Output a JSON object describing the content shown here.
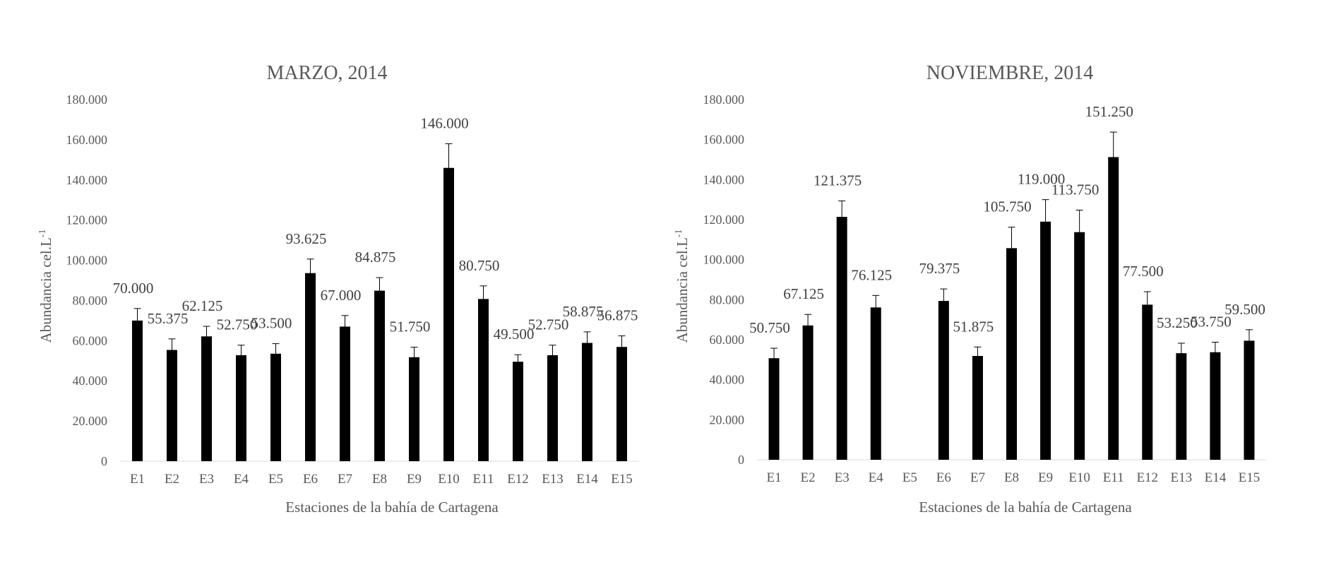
{
  "chart_data": [
    {
      "type": "bar",
      "title": "MARZO, 2014",
      "xlabel": "Estaciones de la bahía de Cartagena",
      "ylabel": "Abundancia cel.L",
      "ylabel_sup": "-1",
      "ylim": [
        0,
        180000
      ],
      "yticks": [
        0,
        20000,
        40000,
        60000,
        80000,
        100000,
        120000,
        140000,
        160000,
        180000
      ],
      "ytick_labels": [
        "0",
        "20.000",
        "40.000",
        "60.000",
        "80.000",
        "100.000",
        "120.000",
        "140.000",
        "160.000",
        "180.000"
      ],
      "categories": [
        "E1",
        "E2",
        "E3",
        "E4",
        "E5",
        "E6",
        "E7",
        "E8",
        "E9",
        "E10",
        "E11",
        "E12",
        "E13",
        "E14",
        "E15"
      ],
      "values": [
        70000,
        55375,
        62125,
        52750,
        53500,
        93625,
        67000,
        84875,
        51750,
        146000,
        80750,
        49500,
        52750,
        58875,
        56875
      ],
      "errors": [
        6000,
        5500,
        5000,
        5000,
        5000,
        7000,
        5500,
        6500,
        5000,
        12000,
        6500,
        3500,
        5000,
        5500,
        5500
      ],
      "value_labels": [
        "70.000",
        "55.375",
        "62.125",
        "52.750",
        "53.500",
        "93.625",
        "67.000",
        "84.875",
        "51.750",
        "146.000",
        "80.750",
        "49.500",
        "52.750",
        "58.875",
        "56.875"
      ],
      "grid": false,
      "legend": "none",
      "bar_color": "#000000"
    },
    {
      "type": "bar",
      "title": "NOVIEMBRE, 2014",
      "xlabel": "Estaciones de la bahía de Cartagena",
      "ylabel": "Abundancia cel.L",
      "ylabel_sup": "-1",
      "ylim": [
        0,
        180000
      ],
      "yticks": [
        0,
        20000,
        40000,
        60000,
        80000,
        100000,
        120000,
        140000,
        160000,
        180000
      ],
      "ytick_labels": [
        "0",
        "20.000",
        "40.000",
        "60.000",
        "80.000",
        "100.000",
        "120.000",
        "140.000",
        "160.000",
        "180.000"
      ],
      "categories": [
        "E1",
        "E2",
        "E3",
        "E4",
        "E5",
        "E6",
        "E7",
        "E8",
        "E9",
        "E10",
        "E11",
        "E12",
        "E13",
        "E14",
        "E15"
      ],
      "values": [
        50750,
        67125,
        121375,
        76125,
        null,
        79375,
        51875,
        105750,
        119000,
        113750,
        151250,
        77500,
        53250,
        53750,
        59500
      ],
      "errors": [
        5000,
        5500,
        8000,
        6000,
        null,
        6000,
        4500,
        10500,
        11000,
        11000,
        12500,
        6500,
        5000,
        5000,
        5500
      ],
      "value_labels": [
        "50.750",
        "67.125",
        "121.375",
        "76.125",
        "",
        "79.375",
        "51.875",
        "105.750",
        "119.000",
        "113.750",
        "151.250",
        "77.500",
        "53.250",
        "53.750",
        "59.500"
      ],
      "grid": false,
      "legend": "none",
      "bar_color": "#000000"
    }
  ]
}
